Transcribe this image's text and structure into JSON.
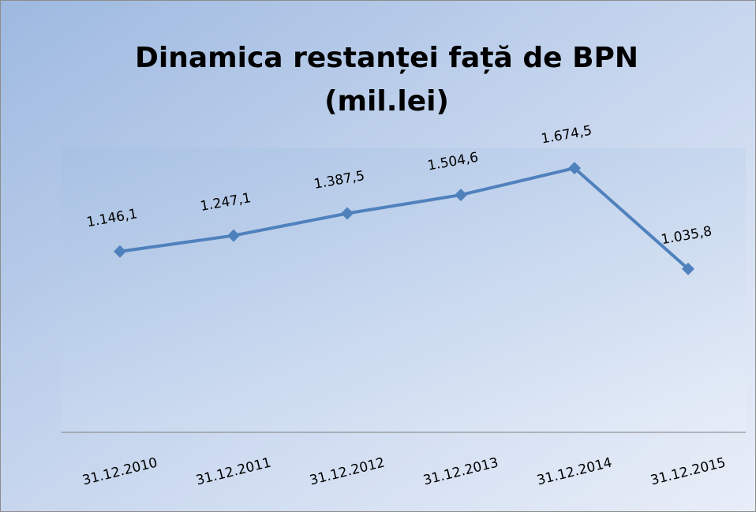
{
  "chart_data": {
    "type": "line",
    "title": [
      "Dinamica restanței față de BPN",
      "(mil.lei)"
    ],
    "categories": [
      "31.12.2010",
      "31.12.2011",
      "31.12.2012",
      "31.12.2013",
      "31.12.2014",
      "31.12.2015"
    ],
    "values": [
      1146.1,
      1247.1,
      1387.5,
      1504.6,
      1674.5,
      1035.8
    ],
    "value_labels": [
      "1.146,1",
      "1.247,1",
      "1.387,5",
      "1.504,6",
      "1.674,5",
      "1.035,8"
    ],
    "color": "#4f81bd",
    "ylim": [
      0,
      1800
    ]
  }
}
